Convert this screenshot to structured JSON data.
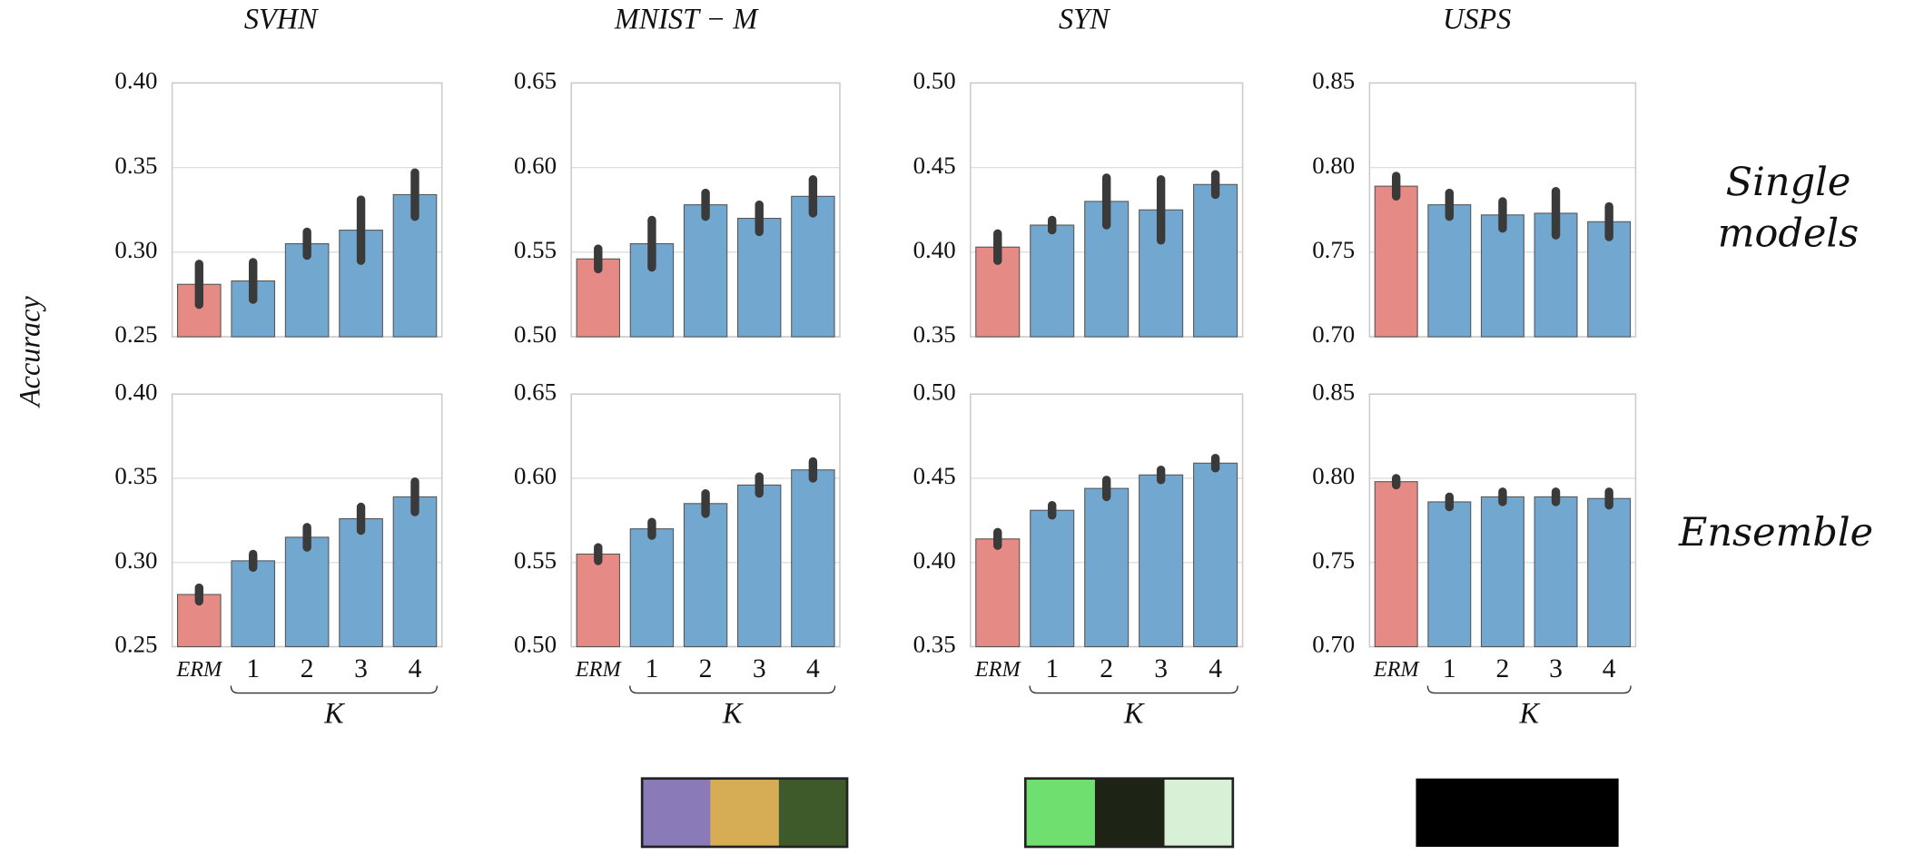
{
  "figure": {
    "ylabel": "Accuracy",
    "row_labels": [
      "Single models",
      "Ensemble"
    ]
  },
  "chart_data": [
    {
      "type": "bar",
      "title": "SVHN",
      "categories": [
        null,
        null,
        null,
        null,
        null
      ],
      "values": [
        0.281,
        0.283,
        0.305,
        0.313,
        0.334
      ],
      "errors": [
        0.012,
        0.011,
        0.007,
        0.018,
        0.013
      ],
      "colors": [
        "#e58a84",
        "#72a7cf",
        "#72a7cf",
        "#72a7cf",
        "#72a7cf"
      ],
      "ylim": [
        0.25,
        0.4
      ],
      "yticks": [
        0.25,
        {
          "value": 0.3,
          "label": "0.30"
        },
        0.35,
        {
          "value": 0.4,
          "label": "0.40"
        }
      ],
      "grid": true
    },
    {
      "type": "bar",
      "title": "MNIST − M",
      "categories": [
        null,
        null,
        null,
        null,
        null
      ],
      "values": [
        0.546,
        0.555,
        0.578,
        0.57,
        0.583
      ],
      "errors": [
        0.006,
        0.014,
        0.007,
        0.008,
        0.01
      ],
      "colors": [
        "#e58a84",
        "#72a7cf",
        "#72a7cf",
        "#72a7cf",
        "#72a7cf"
      ],
      "ylim": [
        0.5,
        0.65
      ],
      "yticks": [
        {
          "value": 0.5,
          "label": "0.50"
        },
        0.55,
        {
          "value": 0.6,
          "label": "0.60"
        },
        0.65
      ],
      "grid": true
    },
    {
      "type": "bar",
      "title": "SYN",
      "categories": [
        null,
        null,
        null,
        null,
        null
      ],
      "values": [
        0.403,
        0.416,
        0.43,
        0.425,
        0.44
      ],
      "errors": [
        0.008,
        0.003,
        0.014,
        0.018,
        0.006
      ],
      "colors": [
        "#e58a84",
        "#72a7cf",
        "#72a7cf",
        "#72a7cf",
        "#72a7cf"
      ],
      "ylim": [
        0.35,
        0.5
      ],
      "yticks": [
        0.35,
        {
          "value": 0.4,
          "label": "0.40"
        },
        0.45,
        {
          "value": 0.5,
          "label": "0.50"
        }
      ],
      "grid": true
    },
    {
      "type": "bar",
      "title": "USPS",
      "categories": [
        null,
        null,
        null,
        null,
        null
      ],
      "values": [
        0.789,
        0.778,
        0.772,
        0.773,
        0.768
      ],
      "errors": [
        0.006,
        0.007,
        0.008,
        0.013,
        0.009
      ],
      "colors": [
        "#e58a84",
        "#72a7cf",
        "#72a7cf",
        "#72a7cf",
        "#72a7cf"
      ],
      "ylim": [
        0.7,
        0.85
      ],
      "yticks": [
        {
          "value": 0.7,
          "label": "0.70"
        },
        0.75,
        {
          "value": 0.8,
          "label": "0.80"
        },
        0.85
      ],
      "grid": true
    },
    {
      "type": "bar",
      "xlabel": "K",
      "categories": [
        "ERM",
        "1",
        "2",
        "3",
        "4"
      ],
      "values": [
        0.281,
        0.301,
        0.315,
        0.326,
        0.339
      ],
      "errors": [
        0.004,
        0.004,
        0.006,
        0.007,
        0.009
      ],
      "colors": [
        "#e58a84",
        "#72a7cf",
        "#72a7cf",
        "#72a7cf",
        "#72a7cf"
      ],
      "ylim": [
        0.25,
        0.4
      ],
      "yticks": [
        0.25,
        {
          "value": 0.3,
          "label": "0.30"
        },
        0.35,
        {
          "value": 0.4,
          "label": "0.40"
        }
      ],
      "grid": true
    },
    {
      "type": "bar",
      "xlabel": "K",
      "categories": [
        "ERM",
        "1",
        "2",
        "3",
        "4"
      ],
      "values": [
        0.555,
        0.57,
        0.585,
        0.596,
        0.605
      ],
      "errors": [
        0.004,
        0.004,
        0.006,
        0.005,
        0.005
      ],
      "colors": [
        "#e58a84",
        "#72a7cf",
        "#72a7cf",
        "#72a7cf",
        "#72a7cf"
      ],
      "ylim": [
        0.5,
        0.65
      ],
      "yticks": [
        {
          "value": 0.5,
          "label": "0.50"
        },
        0.55,
        {
          "value": 0.6,
          "label": "0.60"
        },
        0.65
      ],
      "grid": true
    },
    {
      "type": "bar",
      "xlabel": "K",
      "categories": [
        "ERM",
        "1",
        "2",
        "3",
        "4"
      ],
      "values": [
        0.414,
        0.431,
        0.444,
        0.452,
        0.459
      ],
      "errors": [
        0.004,
        0.003,
        0.005,
        0.003,
        0.003
      ],
      "colors": [
        "#e58a84",
        "#72a7cf",
        "#72a7cf",
        "#72a7cf",
        "#72a7cf"
      ],
      "ylim": [
        0.35,
        0.5
      ],
      "yticks": [
        0.35,
        {
          "value": 0.4,
          "label": "0.40"
        },
        0.45,
        {
          "value": 0.5,
          "label": "0.50"
        }
      ],
      "grid": true
    },
    {
      "type": "bar",
      "xlabel": "K",
      "categories": [
        "ERM",
        "1",
        "2",
        "3",
        "4"
      ],
      "values": [
        0.798,
        0.786,
        0.789,
        0.789,
        0.788
      ],
      "errors": [
        0.002,
        0.003,
        0.003,
        0.003,
        0.004
      ],
      "colors": [
        "#e58a84",
        "#72a7cf",
        "#72a7cf",
        "#72a7cf",
        "#72a7cf"
      ],
      "ylim": [
        0.7,
        0.85
      ],
      "yticks": [
        {
          "value": 0.7,
          "label": "0.70"
        },
        0.75,
        {
          "value": 0.8,
          "label": "0.80"
        },
        0.85
      ],
      "grid": true
    }
  ]
}
